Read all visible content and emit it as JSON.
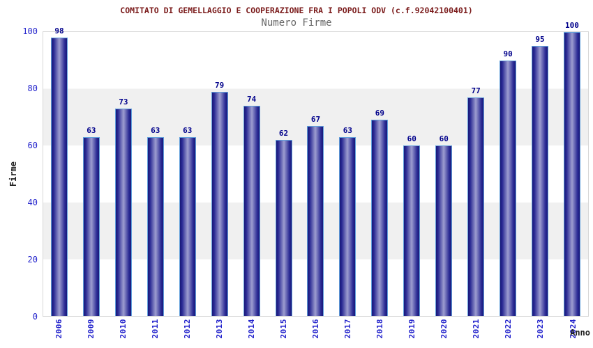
{
  "header": {
    "title": "COMITATO DI GEMELLAGGIO E COOPERAZIONE FRA I POPOLI ODV (c.f.92042100401)",
    "subtitle": "Numero Firme"
  },
  "chart_data": {
    "type": "bar",
    "title": "COMITATO DI GEMELLAGGIO E COOPERAZIONE FRA I POPOLI ODV (c.f.92042100401)",
    "subtitle": "Numero Firme",
    "xlabel": "Anno",
    "ylabel": "Firme",
    "categories": [
      "2006",
      "2009",
      "2010",
      "2011",
      "2012",
      "2013",
      "2014",
      "2015",
      "2016",
      "2017",
      "2018",
      "2019",
      "2020",
      "2021",
      "2022",
      "2023",
      "2024"
    ],
    "values": [
      98,
      63,
      73,
      63,
      63,
      79,
      74,
      62,
      67,
      63,
      69,
      60,
      60,
      77,
      90,
      95,
      100
    ],
    "ylim": [
      0,
      100
    ],
    "yticks": [
      0,
      20,
      40,
      60,
      80,
      100
    ],
    "grid": "alternating-horizontal-bands",
    "legend": "none",
    "bar_value_labels": true
  },
  "colors": {
    "title": "#7a1a1a",
    "subtitle": "#666666",
    "tick_label": "#2323cc",
    "value_label": "#00008b",
    "axis_label": "#1f1f1f",
    "bar_edge": "#181878",
    "bar_mid": "#9d9dd0",
    "bar_border": "#62a0dc",
    "band_gray": "#f0f0f0",
    "plot_border": "#d7d7d7",
    "background": "#ffffff"
  }
}
